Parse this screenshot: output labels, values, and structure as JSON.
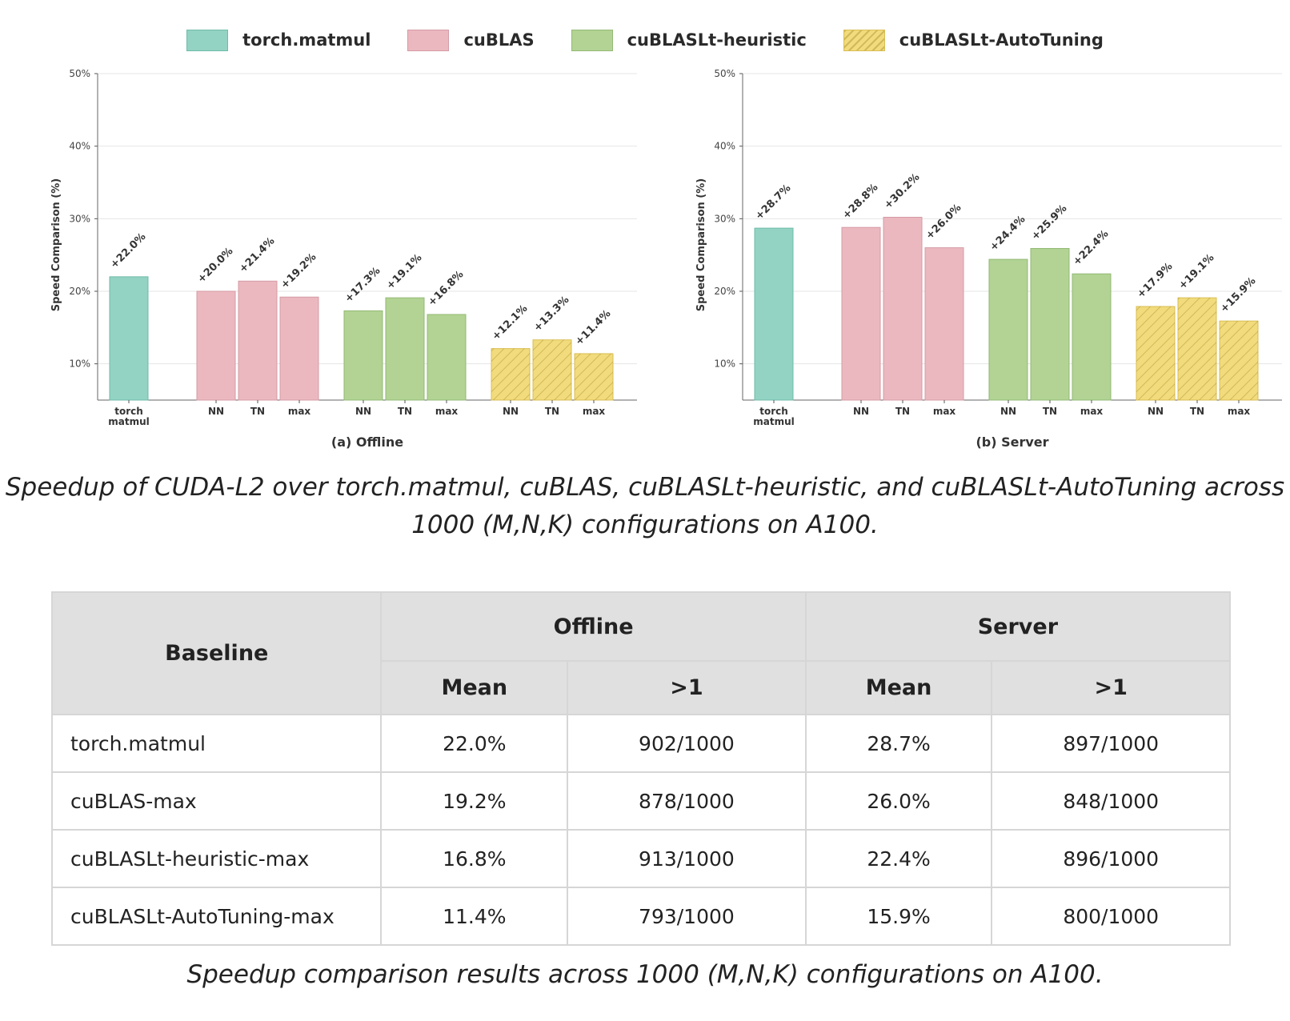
{
  "chart_data": [
    {
      "type": "bar",
      "title": "(a) Offline",
      "xlabel": "(a) Offline",
      "ylabel": "Speed Comparison (%)",
      "ylim": [
        5,
        50
      ],
      "yticks": [
        "10%",
        "20%",
        "30%",
        "40%",
        "50%"
      ],
      "ytick_values": [
        10,
        20,
        30,
        40,
        50
      ],
      "grid": true,
      "bars": [
        {
          "group": 0,
          "tick": "torch\nmatmul",
          "value": 22.0,
          "label": "+22.0%"
        },
        {
          "group": 1,
          "tick": "NN",
          "value": 20.0,
          "label": "+20.0%"
        },
        {
          "group": 1,
          "tick": "TN",
          "value": 21.4,
          "label": "+21.4%"
        },
        {
          "group": 1,
          "tick": "max",
          "value": 19.2,
          "label": "+19.2%"
        },
        {
          "group": 2,
          "tick": "NN",
          "value": 17.3,
          "label": "+17.3%"
        },
        {
          "group": 2,
          "tick": "TN",
          "value": 19.1,
          "label": "+19.1%"
        },
        {
          "group": 2,
          "tick": "max",
          "value": 16.8,
          "label": "+16.8%"
        },
        {
          "group": 3,
          "tick": "NN",
          "value": 12.1,
          "label": "+12.1%"
        },
        {
          "group": 3,
          "tick": "TN",
          "value": 13.3,
          "label": "+13.3%"
        },
        {
          "group": 3,
          "tick": "max",
          "value": 11.4,
          "label": "+11.4%"
        }
      ]
    },
    {
      "type": "bar",
      "title": "(b) Server",
      "xlabel": "(b) Server",
      "ylabel": "Speed Comparison (%)",
      "ylim": [
        5,
        50
      ],
      "yticks": [
        "10%",
        "20%",
        "30%",
        "40%",
        "50%"
      ],
      "ytick_values": [
        10,
        20,
        30,
        40,
        50
      ],
      "grid": true,
      "bars": [
        {
          "group": 0,
          "tick": "torch\nmatmul",
          "value": 28.7,
          "label": "+28.7%"
        },
        {
          "group": 1,
          "tick": "NN",
          "value": 28.8,
          "label": "+28.8%"
        },
        {
          "group": 1,
          "tick": "TN",
          "value": 30.2,
          "label": "+30.2%"
        },
        {
          "group": 1,
          "tick": "max",
          "value": 26.0,
          "label": "+26.0%"
        },
        {
          "group": 2,
          "tick": "NN",
          "value": 24.4,
          "label": "+24.4%"
        },
        {
          "group": 2,
          "tick": "TN",
          "value": 25.9,
          "label": "+25.9%"
        },
        {
          "group": 2,
          "tick": "max",
          "value": 22.4,
          "label": "+22.4%"
        },
        {
          "group": 3,
          "tick": "NN",
          "value": 17.9,
          "label": "+17.9%"
        },
        {
          "group": 3,
          "tick": "TN",
          "value": 19.1,
          "label": "+19.1%"
        },
        {
          "group": 3,
          "tick": "max",
          "value": 15.9,
          "label": "+15.9%"
        }
      ]
    }
  ],
  "legend": [
    {
      "label": "torch.matmul",
      "color": "#93d3c3",
      "edge": "#6fbba8",
      "hatch": false
    },
    {
      "label": "cuBLAS",
      "color": "#ecb8c0",
      "edge": "#d49ba5",
      "hatch": false
    },
    {
      "label": "cuBLASLt-heuristic",
      "color": "#b2d393",
      "edge": "#93b977",
      "hatch": false
    },
    {
      "label": "cuBLASLt-AutoTuning",
      "color": "#f1db7c",
      "edge": "#d9be55",
      "hatch": true
    }
  ],
  "captions": {
    "figure": "Speedup of CUDA-L2 over torch.matmul, cuBLAS, cuBLASLt-heuristic, and cuBLASLt-AutoTuning across 1000 (M,N,K) configurations on A100.",
    "table": "Speedup comparison results across 1000 (M,N,K) configurations on A100."
  },
  "table": {
    "headers": {
      "baseline": "Baseline",
      "offline": "Offline",
      "server": "Server",
      "mean": "Mean",
      "gt1": ">1"
    },
    "rows": [
      {
        "baseline": "torch.matmul",
        "offline_mean": "22.0%",
        "offline_gt1": "902/1000",
        "server_mean": "28.7%",
        "server_gt1": "897/1000"
      },
      {
        "baseline": "cuBLAS-max",
        "offline_mean": "19.2%",
        "offline_gt1": "878/1000",
        "server_mean": "26.0%",
        "server_gt1": "848/1000"
      },
      {
        "baseline": "cuBLASLt-heuristic-max",
        "offline_mean": "16.8%",
        "offline_gt1": "913/1000",
        "server_mean": "22.4%",
        "server_gt1": "896/1000"
      },
      {
        "baseline": "cuBLASLt-AutoTuning-max",
        "offline_mean": "11.4%",
        "offline_gt1": "793/1000",
        "server_mean": "15.9%",
        "server_gt1": "800/1000"
      }
    ]
  }
}
